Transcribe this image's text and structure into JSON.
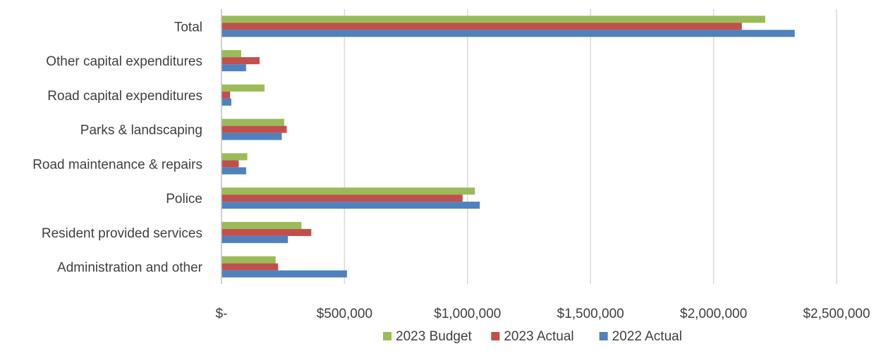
{
  "chart_data": {
    "type": "bar",
    "orientation": "horizontal",
    "categories": [
      "Total",
      "Other capital expenditures",
      "Road capital expenditures",
      "Parks & landscaping",
      "Road maintenance & repairs",
      "Police",
      "Resident provided services",
      "Administration and other"
    ],
    "series": [
      {
        "name": "2023 Budget",
        "color": "#9BBB59",
        "values": [
          2210000,
          80000,
          175000,
          255000,
          105000,
          1030000,
          325000,
          220000
        ]
      },
      {
        "name": "2023 Actual",
        "color": "#C0504D",
        "values": [
          2115000,
          155000,
          35000,
          265000,
          70000,
          980000,
          365000,
          230000
        ]
      },
      {
        "name": "2022 Actual",
        "color": "#4F81BD",
        "values": [
          2330000,
          100000,
          40000,
          245000,
          100000,
          1050000,
          270000,
          510000
        ]
      }
    ],
    "xlim": [
      0,
      2500000
    ],
    "xticks": [
      0,
      500000,
      1000000,
      1500000,
      2000000,
      2500000
    ],
    "xtick_labels": [
      "$-",
      "$500,000",
      "$1,000,000",
      "$1,500,000",
      "$2,000,000",
      "$2,500,000"
    ],
    "grid": "vertical",
    "legend_position": "bottom",
    "title": "",
    "xlabel": "",
    "ylabel": ""
  }
}
